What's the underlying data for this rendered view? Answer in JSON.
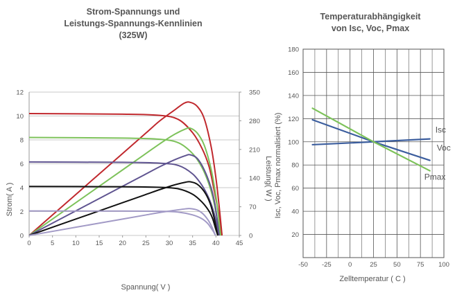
{
  "chart_data": [
    {
      "type": "line",
      "title": [
        "Strom-Spannungs und",
        "Leistungs-Spannungs-Kennlinien",
        "(325W)"
      ],
      "xlabel": "Spannung( V )",
      "ylabel": "Strom( A )",
      "y2label": "Leistung( W )",
      "xlim": [
        0,
        45
      ],
      "ylim": [
        0,
        12
      ],
      "y2lim": [
        0,
        350
      ],
      "xticks": [
        0,
        5,
        10,
        15,
        20,
        25,
        30,
        35,
        40,
        45
      ],
      "yticks": [
        0,
        2,
        4,
        6,
        8,
        10,
        12
      ],
      "y2ticks": [
        0,
        70,
        140,
        210,
        280,
        350
      ],
      "grid": true,
      "series": [
        {
          "color": "#c0282d",
          "iv": [
            [
              0,
              10.2
            ],
            [
              20,
              10.15
            ],
            [
              28,
              10.05
            ],
            [
              32,
              9.7
            ],
            [
              35,
              8.6
            ],
            [
              37,
              7.3
            ],
            [
              38.5,
              5.8
            ],
            [
              39.5,
              4.0
            ],
            [
              40.5,
              2.0
            ],
            [
              41.3,
              0
            ]
          ],
          "pv": [
            [
              0,
              0
            ],
            [
              10,
              100
            ],
            [
              20,
              200
            ],
            [
              25,
              250
            ],
            [
              28,
              280
            ],
            [
              31,
              305
            ],
            [
              33.2,
              323
            ],
            [
              34.5,
              325
            ],
            [
              36,
              315
            ],
            [
              37.5,
              285
            ],
            [
              39,
              215
            ],
            [
              40,
              140
            ],
            [
              40.7,
              70
            ],
            [
              41.3,
              0
            ]
          ]
        },
        {
          "color": "#7dc25a",
          "iv": [
            [
              0,
              8.2
            ],
            [
              20,
              8.15
            ],
            [
              28,
              8.05
            ],
            [
              32,
              7.75
            ],
            [
              35,
              6.85
            ],
            [
              37,
              5.7
            ],
            [
              38.5,
              4.3
            ],
            [
              39.5,
              2.9
            ],
            [
              40.3,
              1.3
            ],
            [
              41.0,
              0
            ]
          ],
          "pv": [
            [
              0,
              0
            ],
            [
              10,
              80
            ],
            [
              20,
              160
            ],
            [
              25,
              200
            ],
            [
              28,
              224
            ],
            [
              31,
              246
            ],
            [
              33.5,
              260
            ],
            [
              34.5,
              262
            ],
            [
              36,
              250
            ],
            [
              37.5,
              220
            ],
            [
              39,
              160
            ],
            [
              40,
              95
            ],
            [
              40.5,
              50
            ],
            [
              41.0,
              0
            ]
          ]
        },
        {
          "color": "#5f5490",
          "iv": [
            [
              0,
              6.15
            ],
            [
              20,
              6.12
            ],
            [
              28,
              6.05
            ],
            [
              32,
              5.85
            ],
            [
              35,
              5.15
            ],
            [
              37,
              4.2
            ],
            [
              38.5,
              3.1
            ],
            [
              39.5,
              2.0
            ],
            [
              40.2,
              0.9
            ],
            [
              40.7,
              0
            ]
          ],
          "pv": [
            [
              0,
              0
            ],
            [
              10,
              60
            ],
            [
              20,
              120
            ],
            [
              25,
              150
            ],
            [
              28,
              168
            ],
            [
              31,
              184
            ],
            [
              33.5,
              195
            ],
            [
              34.5,
              197
            ],
            [
              36,
              188
            ],
            [
              37.5,
              160
            ],
            [
              39,
              115
            ],
            [
              39.8,
              75
            ],
            [
              40.3,
              35
            ],
            [
              40.7,
              0
            ]
          ]
        },
        {
          "color": "#111111",
          "iv": [
            [
              0,
              4.1
            ],
            [
              20,
              4.08
            ],
            [
              28,
              4.03
            ],
            [
              32,
              3.9
            ],
            [
              35,
              3.45
            ],
            [
              37,
              2.8
            ],
            [
              38.5,
              2.05
            ],
            [
              39.3,
              1.4
            ],
            [
              39.9,
              0.6
            ],
            [
              40.4,
              0
            ]
          ],
          "pv": [
            [
              0,
              0
            ],
            [
              10,
              40
            ],
            [
              20,
              80
            ],
            [
              25,
              100
            ],
            [
              28,
              112
            ],
            [
              31,
              123
            ],
            [
              33.5,
              130
            ],
            [
              34.5,
              131
            ],
            [
              36,
              125
            ],
            [
              37.5,
              107
            ],
            [
              38.7,
              80
            ],
            [
              39.5,
              48
            ],
            [
              40.0,
              22
            ],
            [
              40.4,
              0
            ]
          ]
        },
        {
          "color": "#a29ac6",
          "iv": [
            [
              0,
              2.05
            ],
            [
              20,
              2.04
            ],
            [
              28,
              2.02
            ],
            [
              32,
              1.95
            ],
            [
              35,
              1.72
            ],
            [
              37,
              1.4
            ],
            [
              38.2,
              1.02
            ],
            [
              38.9,
              0.65
            ],
            [
              39.5,
              0.3
            ],
            [
              39.9,
              0
            ]
          ],
          "pv": [
            [
              0,
              0
            ],
            [
              10,
              20
            ],
            [
              20,
              40
            ],
            [
              25,
              50
            ],
            [
              28,
              56
            ],
            [
              31,
              61
            ],
            [
              33.5,
              65
            ],
            [
              34.5,
              65.5
            ],
            [
              36,
              62
            ],
            [
              37.2,
              53
            ],
            [
              38.3,
              38
            ],
            [
              39.0,
              24
            ],
            [
              39.5,
              11
            ],
            [
              39.9,
              0
            ]
          ]
        }
      ]
    },
    {
      "type": "line",
      "title": [
        "Temperaturabhängigkeit",
        "von Isc, Voc, Pmax"
      ],
      "xlabel": "Zelltemperatur ( C )",
      "ylabel": "Isc, Voc, Pmax normalisiert (%)",
      "xlim": [
        -50,
        100
      ],
      "ylim": [
        0,
        180
      ],
      "xticks": [
        -50,
        -25,
        0,
        25,
        50,
        75,
        100
      ],
      "yticks": [
        20,
        40,
        60,
        80,
        100,
        120,
        140,
        160,
        180
      ],
      "grid": true,
      "series": [
        {
          "name": "Isc",
          "color": "#3c5e9e",
          "points": [
            [
              -40,
              97.5
            ],
            [
              25,
              100
            ],
            [
              85,
              102.5
            ]
          ]
        },
        {
          "name": "Voc",
          "color": "#3c5e9e",
          "points": [
            [
              -40,
              119
            ],
            [
              25,
              100
            ],
            [
              85,
              84
            ]
          ]
        },
        {
          "name": "Pmax",
          "color": "#7dc25a",
          "points": [
            [
              -40,
              129
            ],
            [
              25,
              100
            ],
            [
              85,
              75
            ]
          ]
        }
      ]
    }
  ]
}
